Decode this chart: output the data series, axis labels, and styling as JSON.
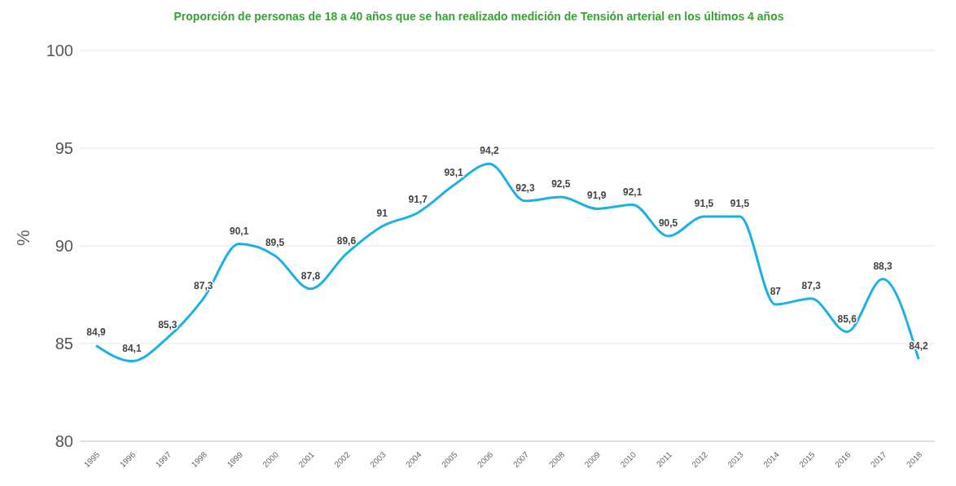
{
  "chart_data": {
    "type": "line",
    "title": "Proporción de personas de 18 a 40 años que se han realizado medición de Tensión arterial en los últimos 4 años",
    "ylabel": "%",
    "categories": [
      "1995",
      "1996",
      "1997",
      "1998",
      "1999",
      "2000",
      "2001",
      "2002",
      "2003",
      "2004",
      "2005",
      "2006",
      "2007",
      "2008",
      "2009",
      "2010",
      "2011",
      "2012",
      "2013",
      "2014",
      "2015",
      "2016",
      "2017",
      "2018"
    ],
    "series": [
      {
        "color": "#1cb0e8",
        "values": [
          84.9,
          84.1,
          85.3,
          87.3,
          90.1,
          89.5,
          87.8,
          89.6,
          91,
          91.7,
          93.1,
          94.2,
          92.3,
          92.5,
          91.9,
          92.1,
          90.5,
          91.5,
          91.5,
          87,
          87.3,
          85.6,
          88.3,
          84.2
        ],
        "value_labels": [
          "84,9",
          "84,1",
          "85,3",
          "87,3",
          "90,1",
          "89,5",
          "87,8",
          "89,6",
          "91",
          "91,7",
          "93,1",
          "94,2",
          "92,3",
          "92,5",
          "91,9",
          "92,1",
          "90,5",
          "91,5",
          "91,5",
          "87",
          "87,3",
          "85,6",
          "88,3",
          "84,2"
        ]
      }
    ],
    "ylim": [
      80,
      100
    ],
    "yticks": [
      80,
      85,
      90,
      95,
      100
    ],
    "grid": "y",
    "marker": "none",
    "line_style": "solid"
  }
}
